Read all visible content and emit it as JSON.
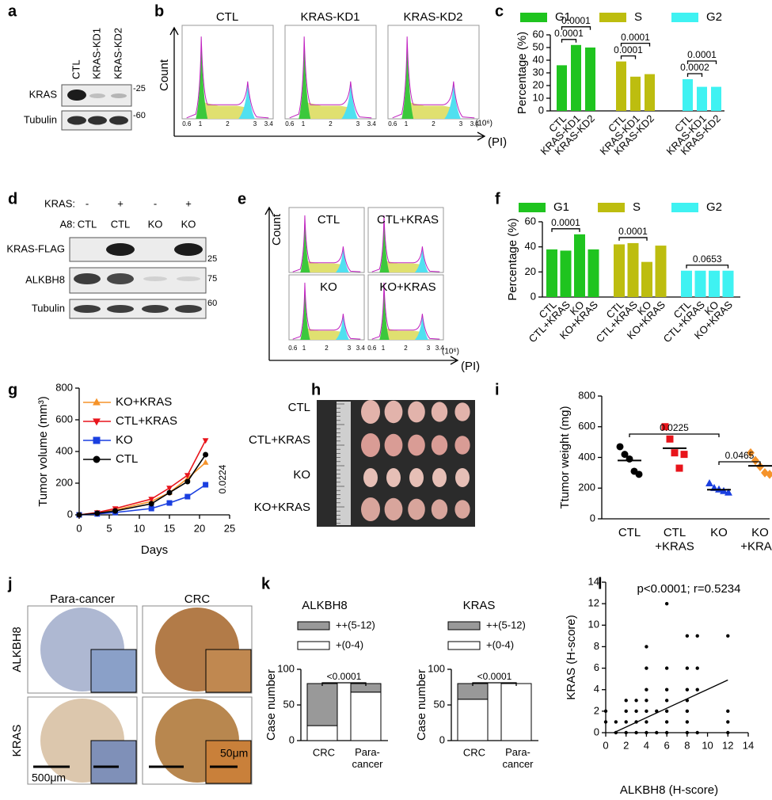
{
  "panel_labels": [
    "a",
    "b",
    "c",
    "d",
    "e",
    "f",
    "g",
    "h",
    "i",
    "j",
    "k",
    "l"
  ],
  "blot_a": {
    "lanes": [
      "CTL",
      "KRAS-KD1",
      "KRAS-KD2"
    ],
    "rows": [
      "KRAS",
      "Tubulin"
    ],
    "markers": [
      "-25",
      "-60"
    ]
  },
  "flow_b": {
    "panels": [
      "CTL",
      "KRAS-KD1",
      "KRAS-KD2"
    ],
    "ylabel": "Count",
    "xlabel": "(PI)",
    "unit": "(10⁶)",
    "xticks": [
      "0.6",
      "1",
      "2",
      "3",
      "3.4"
    ]
  },
  "blot_d": {
    "row1_label": "KRAS:",
    "row1": [
      "-",
      "+",
      "-",
      "+"
    ],
    "row2_label": "A8:",
    "row2": [
      "CTL",
      "CTL",
      "KO",
      "KO"
    ],
    "rows": [
      "KRAS-FLAG",
      "ALKBH8",
      "Tubulin"
    ],
    "markers": [
      "25",
      "75",
      "60"
    ]
  },
  "flow_e": {
    "panels": [
      "CTL",
      "CTL+KRAS",
      "KO",
      "KO+KRAS"
    ],
    "ylabel": "Count",
    "xlabel": "(PI)",
    "unit": "(10⁶)",
    "xticks": [
      "0.6",
      "1",
      "2",
      "3",
      "3.4"
    ]
  },
  "photo_h": {
    "rows": [
      "CTL",
      "CTL+KRAS",
      "KO",
      "KO+KRAS"
    ]
  },
  "ihc_j": {
    "columns": [
      "Para-cancer",
      "CRC"
    ],
    "rows": [
      "ALKBH8",
      "KRAS"
    ],
    "scale_bars": [
      "500μm",
      "50μm"
    ]
  },
  "chart_data": [
    {
      "type": "bar",
      "categories": [
        "CTL",
        "KRAS-KD1",
        "KRAS-KD2"
      ],
      "series": [
        {
          "name": "G1",
          "color": "#1fc41f",
          "values": [
            36,
            52,
            50
          ]
        },
        {
          "name": "S",
          "color": "#bdbd0f",
          "values": [
            39,
            27,
            29
          ]
        },
        {
          "name": "G2",
          "color": "#3ff2f2",
          "values": [
            25,
            19,
            19
          ]
        }
      ],
      "ylabel": "Percentage (%)",
      "ylim": [
        0,
        60
      ],
      "yticks": [
        0,
        10,
        20,
        30,
        40,
        50,
        60
      ],
      "annotations": [
        "0.0001",
        "0.0001",
        "0.0001",
        "0.0001",
        "0.0002",
        "0.0001"
      ]
    },
    {
      "type": "bar",
      "categories": [
        "CTL",
        "CTL+KRAS",
        "KO",
        "KO+KRAS"
      ],
      "series": [
        {
          "name": "G1",
          "color": "#1fc41f",
          "values": [
            38,
            37,
            50,
            38
          ]
        },
        {
          "name": "S",
          "color": "#bdbd0f",
          "values": [
            42,
            43,
            28,
            41
          ]
        },
        {
          "name": "G2",
          "color": "#3ff2f2",
          "values": [
            21,
            21,
            21,
            21
          ]
        }
      ],
      "ylabel": "Percentage (%)",
      "ylim": [
        0,
        60
      ],
      "yticks": [
        0,
        20,
        40,
        60
      ],
      "annotations": [
        "0.0001",
        "0.0001",
        "0.0653"
      ]
    },
    {
      "type": "line",
      "x": [
        0,
        3,
        6,
        12,
        15,
        18,
        21
      ],
      "series": [
        {
          "name": "KO+KRAS",
          "color": "#f5932a",
          "marker": "triangle-up",
          "values": [
            0,
            12,
            30,
            85,
            140,
            230,
            330
          ]
        },
        {
          "name": "CTL+KRAS",
          "color": "#e8141b",
          "marker": "triangle-down",
          "values": [
            0,
            15,
            40,
            100,
            170,
            250,
            470
          ]
        },
        {
          "name": "KO",
          "color": "#1a3fe0",
          "marker": "square",
          "values": [
            0,
            6,
            15,
            40,
            75,
            115,
            190
          ]
        },
        {
          "name": "CTL",
          "color": "#000000",
          "marker": "circle",
          "values": [
            0,
            10,
            25,
            70,
            140,
            210,
            380
          ]
        }
      ],
      "xlabel": "Days",
      "ylabel": "Tumor volume (mm³)",
      "xlim": [
        0,
        25
      ],
      "xticks": [
        0,
        5,
        10,
        15,
        20,
        25
      ],
      "ylim": [
        0,
        800
      ],
      "yticks": [
        0,
        200,
        400,
        600,
        800
      ],
      "annotations": [
        "0.0224"
      ]
    },
    {
      "type": "dot",
      "categories": [
        "CTL",
        "CTL\n+KRAS",
        "KO",
        "KO\n+KRAS"
      ],
      "values": [
        [
          470,
          420,
          390,
          310,
          290
        ],
        [
          600,
          520,
          430,
          330,
          420
        ],
        [
          230,
          200,
          190,
          180,
          170
        ],
        [
          430,
          380,
          340,
          300,
          290
        ]
      ],
      "means": [
        380,
        460,
        190,
        345
      ],
      "colors": [
        "#000000",
        "#e8141b",
        "#1a3fe0",
        "#f5932a"
      ],
      "markers": [
        "circle",
        "square",
        "triangle-up",
        "diamond"
      ],
      "ylabel": "Ttumor weight (mg)",
      "ylim": [
        0,
        800
      ],
      "yticks": [
        0,
        200,
        400,
        600,
        800
      ],
      "annotations": [
        "0.0225",
        "0.0465"
      ]
    },
    {
      "type": "stacked_bar",
      "title": "ALKBH8",
      "categories": [
        "CRC",
        "Para-\ncancer"
      ],
      "series": [
        {
          "name": "++(5-12)",
          "color": "#999999",
          "values": [
            59,
            12
          ]
        },
        {
          "name": "+(0-4)",
          "color": "#ffffff",
          "values": [
            21,
            68
          ]
        }
      ],
      "ylabel": "Case number",
      "ylim": [
        0,
        100
      ],
      "yticks": [
        0,
        50,
        100
      ],
      "annotations": [
        "<0.0001"
      ]
    },
    {
      "type": "stacked_bar",
      "title": "KRAS",
      "categories": [
        "CRC",
        "Para-\ncancer"
      ],
      "series": [
        {
          "name": "++(5-12)",
          "color": "#999999",
          "values": [
            22,
            0
          ]
        },
        {
          "name": "+(0-4)",
          "color": "#ffffff",
          "values": [
            58,
            80
          ]
        }
      ],
      "ylabel": "Case number",
      "ylim": [
        0,
        100
      ],
      "yticks": [
        0,
        50,
        100
      ],
      "annotations": [
        "<0.0001"
      ]
    },
    {
      "type": "scatter",
      "title": "p<0.0001; r=0.5234",
      "x": [
        0,
        0,
        1,
        1,
        2,
        2,
        2,
        2,
        3,
        3,
        3,
        3,
        4,
        4,
        4,
        4,
        4,
        4,
        4,
        5,
        5,
        6,
        6,
        6,
        6,
        6,
        6,
        6,
        8,
        8,
        8,
        8,
        8,
        8,
        8,
        9,
        9,
        9,
        9,
        12,
        12,
        12,
        12
      ],
      "y": [
        1,
        2,
        1,
        0,
        0,
        1,
        2,
        3,
        0,
        1,
        2,
        3,
        0,
        1,
        2,
        3,
        4,
        6,
        8,
        0,
        2,
        0,
        1,
        2,
        3,
        4,
        6,
        12,
        0,
        1,
        2,
        3,
        4,
        6,
        9,
        0,
        4,
        6,
        9,
        0,
        1,
        2,
        9
      ],
      "fit": {
        "x": [
          0.8,
          12
        ],
        "y": [
          0,
          4.9
        ]
      },
      "xlabel": "ALKBH8 (H-score)",
      "ylabel": "KRAS (H-score)",
      "xlim": [
        0,
        14
      ],
      "xticks": [
        0,
        2,
        4,
        6,
        8,
        10,
        12,
        14
      ],
      "ylim": [
        0,
        14
      ],
      "yticks": [
        0,
        2,
        4,
        6,
        8,
        10,
        12,
        14
      ]
    }
  ]
}
